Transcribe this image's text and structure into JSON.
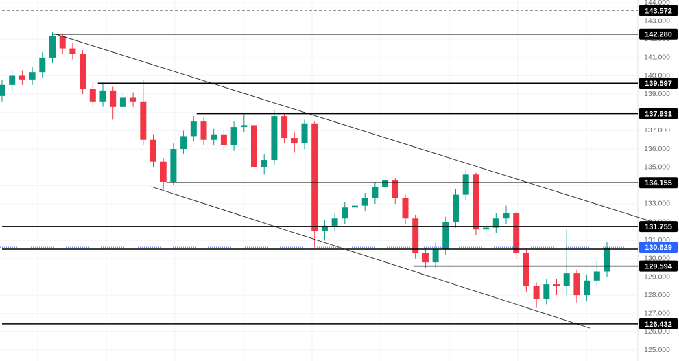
{
  "chart_data": {
    "type": "candlestick",
    "open": [
      138.9,
      139.5,
      140.0,
      139.8,
      140.2,
      141.0,
      142.2,
      141.5,
      141.2,
      139.3,
      138.6,
      139.2,
      138.3,
      138.8,
      138.6,
      136.5,
      135.3,
      134.2,
      136.0,
      136.7,
      137.5,
      136.5,
      136.8,
      136.2,
      137.2,
      137.3,
      135.0,
      135.4,
      137.8,
      136.6,
      136.3,
      137.4,
      131.5,
      131.8,
      132.2,
      132.8,
      132.9,
      133.3,
      133.9,
      134.3,
      133.3,
      132.2,
      130.3,
      129.8,
      130.5,
      132.0,
      133.5,
      134.6,
      131.6,
      131.7,
      132.2,
      132.5,
      130.3,
      128.5,
      127.8,
      128.6,
      128.5,
      129.2,
      128.0,
      128.8,
      129.3
    ],
    "high": [
      139.8,
      140.3,
      140.3,
      140.5,
      141.3,
      142.4,
      142.3,
      141.8,
      141.4,
      139.6,
      139.6,
      139.4,
      139.1,
      139.1,
      139.8,
      136.8,
      135.5,
      136.3,
      137.0,
      137.8,
      137.7,
      137.1,
      137.0,
      137.5,
      137.9,
      137.5,
      135.7,
      138.1,
      138.0,
      136.9,
      137.6,
      137.5,
      132.1,
      132.5,
      133.1,
      133.2,
      133.6,
      134.2,
      134.5,
      134.4,
      133.5,
      132.4,
      130.6,
      130.9,
      132.3,
      133.8,
      134.9,
      134.7,
      132.0,
      132.5,
      132.9,
      132.6,
      130.5,
      128.7,
      128.9,
      128.9,
      131.6,
      129.4,
      129.1,
      129.9,
      130.9
    ],
    "low": [
      138.6,
      139.2,
      139.5,
      139.5,
      139.9,
      140.7,
      141.2,
      140.9,
      139.0,
      138.3,
      138.3,
      137.6,
      138.0,
      138.3,
      136.2,
      135.0,
      133.8,
      134.0,
      135.7,
      136.4,
      136.2,
      136.2,
      135.9,
      135.9,
      136.9,
      134.7,
      134.6,
      135.1,
      136.3,
      135.8,
      136.0,
      130.6,
      131.0,
      131.5,
      131.9,
      132.5,
      132.6,
      133.0,
      133.6,
      133.0,
      131.9,
      130.0,
      129.5,
      129.5,
      130.2,
      131.7,
      133.2,
      131.3,
      131.3,
      131.4,
      131.9,
      130.0,
      128.2,
      127.3,
      127.5,
      128.0,
      128.0,
      127.6,
      127.7,
      128.5,
      129.0
    ],
    "close": [
      139.5,
      140.0,
      139.8,
      140.2,
      141.0,
      142.2,
      141.5,
      141.2,
      139.3,
      138.6,
      139.2,
      138.3,
      138.8,
      138.6,
      136.5,
      135.3,
      134.2,
      136.0,
      136.7,
      137.5,
      136.5,
      136.8,
      136.2,
      137.2,
      137.3,
      135.0,
      135.4,
      137.8,
      136.6,
      136.3,
      137.4,
      131.5,
      131.8,
      132.2,
      132.8,
      132.9,
      133.3,
      133.9,
      134.3,
      133.3,
      132.2,
      130.3,
      129.8,
      130.5,
      132.0,
      133.5,
      134.6,
      131.6,
      131.7,
      132.2,
      132.5,
      130.3,
      128.5,
      127.8,
      128.6,
      128.5,
      129.2,
      128.0,
      128.8,
      129.3,
      130.6
    ],
    "up_color": "#089981",
    "down_color": "#f23645",
    "ylim": [
      125,
      144
    ],
    "yticks": [
      {
        "value": 125,
        "label": "125.000"
      },
      {
        "value": 126,
        "label": "126.000"
      },
      {
        "value": 127,
        "label": "127.000"
      },
      {
        "value": 128,
        "label": "128.000"
      },
      {
        "value": 129,
        "label": "129.000"
      },
      {
        "value": 130,
        "label": "130.000"
      },
      {
        "value": 131,
        "label": "131.000"
      },
      {
        "value": 132,
        "label": "132.000"
      },
      {
        "value": 133,
        "label": "133.000"
      },
      {
        "value": 134,
        "label": "134.000"
      },
      {
        "value": 135,
        "label": "135.000"
      },
      {
        "value": 136,
        "label": "136.000"
      },
      {
        "value": 137,
        "label": "137.000"
      },
      {
        "value": 138,
        "label": "138.000"
      },
      {
        "value": 139,
        "label": "139.000"
      },
      {
        "value": 140,
        "label": "140.000"
      },
      {
        "value": 141,
        "label": "141.000"
      },
      {
        "value": 142,
        "label": "142.000"
      },
      {
        "value": 143,
        "label": "143.000"
      },
      {
        "value": 144,
        "label": "144.000"
      }
    ],
    "grid": true,
    "levels": [
      {
        "price": {
          "value": 143.572,
          "label": "143.572"
        },
        "from": 0,
        "style": "dashed"
      },
      {
        "price": {
          "value": 142.28,
          "label": "142.280"
        },
        "from": 5,
        "style": "solid"
      },
      {
        "price": {
          "value": 139.597,
          "label": "139.597"
        },
        "from": 9.5,
        "style": "solid"
      },
      {
        "price": {
          "value": 137.931,
          "label": "137.931"
        },
        "from": 19.3,
        "style": "solid"
      },
      {
        "price": {
          "value": 134.155,
          "label": "134.155"
        },
        "from": 16.3,
        "style": "solid"
      },
      {
        "price": {
          "value": 131.755,
          "label": "131.755"
        },
        "from": 0,
        "style": "solid"
      },
      {
        "price": {
          "value": 129.594,
          "label": "129.594"
        },
        "from": 40.8,
        "style": "solid"
      },
      {
        "price": {
          "value": 126.432,
          "label": "126.432"
        },
        "from": 0,
        "style": "solid"
      }
    ],
    "unlabeled_levels": [
      {
        "price": 130.52,
        "from": 0
      }
    ],
    "current_price": {
      "value": 130.629,
      "label": "130.629",
      "color": "#2962ff"
    },
    "trendlines": [
      {
        "from": {
          "x": 5.2,
          "price": 142.3
        },
        "to": {
          "x": 67.1,
          "price": 131.57
        }
      },
      {
        "from": {
          "x": 14.8,
          "price": 133.94
        },
        "to": {
          "x": 58.3,
          "price": 126.2
        }
      }
    ]
  }
}
